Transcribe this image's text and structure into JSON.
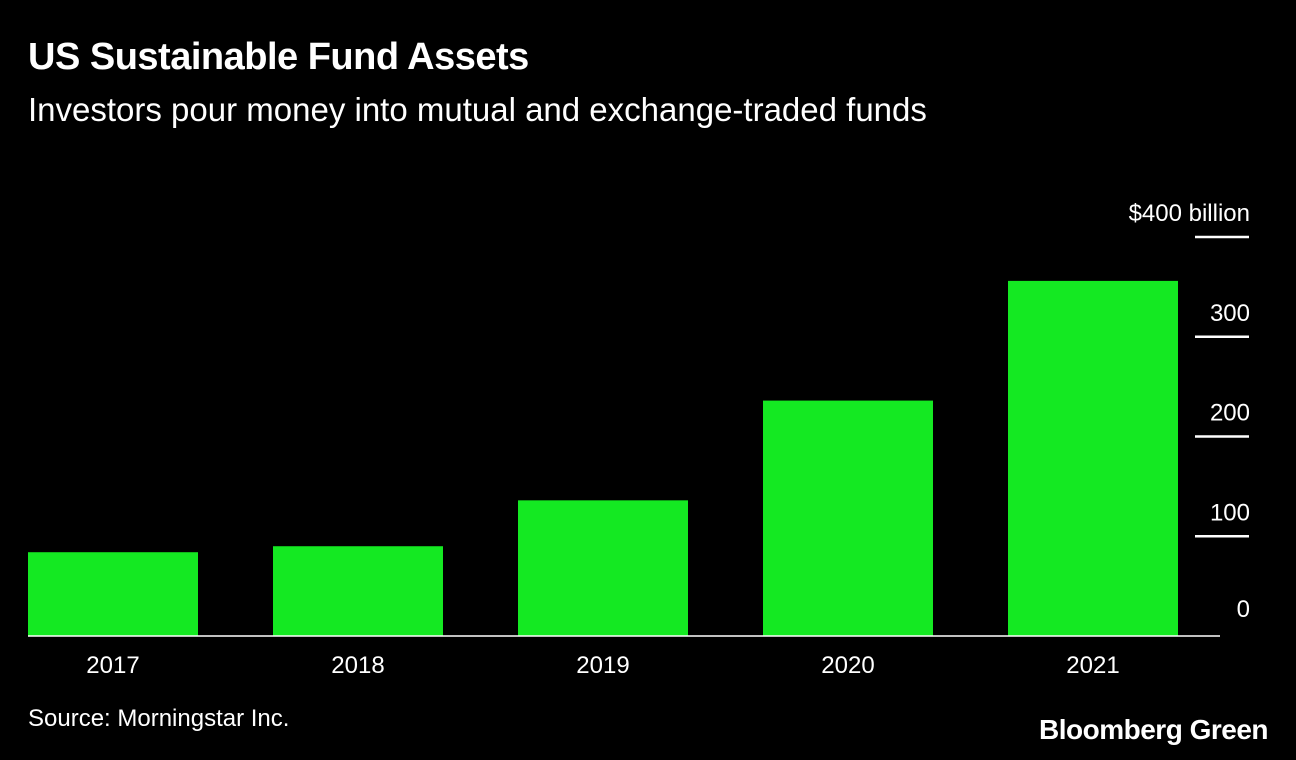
{
  "header": {
    "title": "US Sustainable Fund Assets",
    "subtitle": "Investors pour money into mutual and exchange-traded funds"
  },
  "footer": {
    "source": "Source: Morningstar Inc.",
    "brand": "Bloomberg Green"
  },
  "colors": {
    "background": "#000000",
    "bar": "#14e922",
    "text": "#ffffff"
  },
  "chart_data": {
    "type": "bar",
    "title": "US Sustainable Fund Assets",
    "subtitle": "Investors pour money into mutual and exchange-traded funds",
    "categories": [
      "2017",
      "2018",
      "2019",
      "2020",
      "2021"
    ],
    "values": [
      84,
      90,
      136,
      236,
      356
    ],
    "ylim": [
      0,
      400
    ],
    "yticks": [
      0,
      100,
      200,
      300,
      400
    ],
    "ytick_labels": [
      "0",
      "100",
      "200",
      "300",
      "$400 billion"
    ],
    "y_axis_position": "right",
    "grid": false,
    "legend": "none"
  }
}
